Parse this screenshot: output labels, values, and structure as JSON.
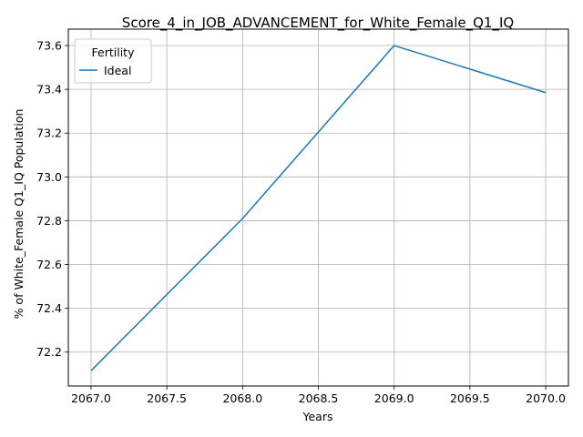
{
  "chart_data": {
    "type": "line",
    "title": "Score_4_in_JOB_ADVANCEMENT_for_White_Female_Q1_IQ",
    "xlabel": "Years",
    "ylabel": "% of White_Female Q1_IQ Population",
    "x": [
      2067,
      2068,
      2069,
      2070
    ],
    "series": [
      {
        "name": "Ideal",
        "values": [
          72.115,
          72.81,
          73.6,
          73.385
        ],
        "color": "#1f77b4"
      }
    ],
    "xlim": [
      2066.85,
      2070.15
    ],
    "ylim": [
      72.045,
      73.675
    ],
    "xticks": [
      2067.0,
      2067.5,
      2068.0,
      2068.5,
      2069.0,
      2069.5,
      2070.0
    ],
    "xtick_labels": [
      "2067.0",
      "2067.5",
      "2068.0",
      "2068.5",
      "2069.0",
      "2069.5",
      "2070.0"
    ],
    "yticks": [
      72.2,
      72.4,
      72.6,
      72.8,
      73.0,
      73.2,
      73.4,
      73.6
    ],
    "ytick_labels": [
      "72.2",
      "72.4",
      "72.6",
      "72.8",
      "73.0",
      "73.2",
      "73.4",
      "73.6"
    ],
    "grid": true,
    "legend": {
      "title": "Fertility",
      "placement": "upper-left"
    }
  }
}
